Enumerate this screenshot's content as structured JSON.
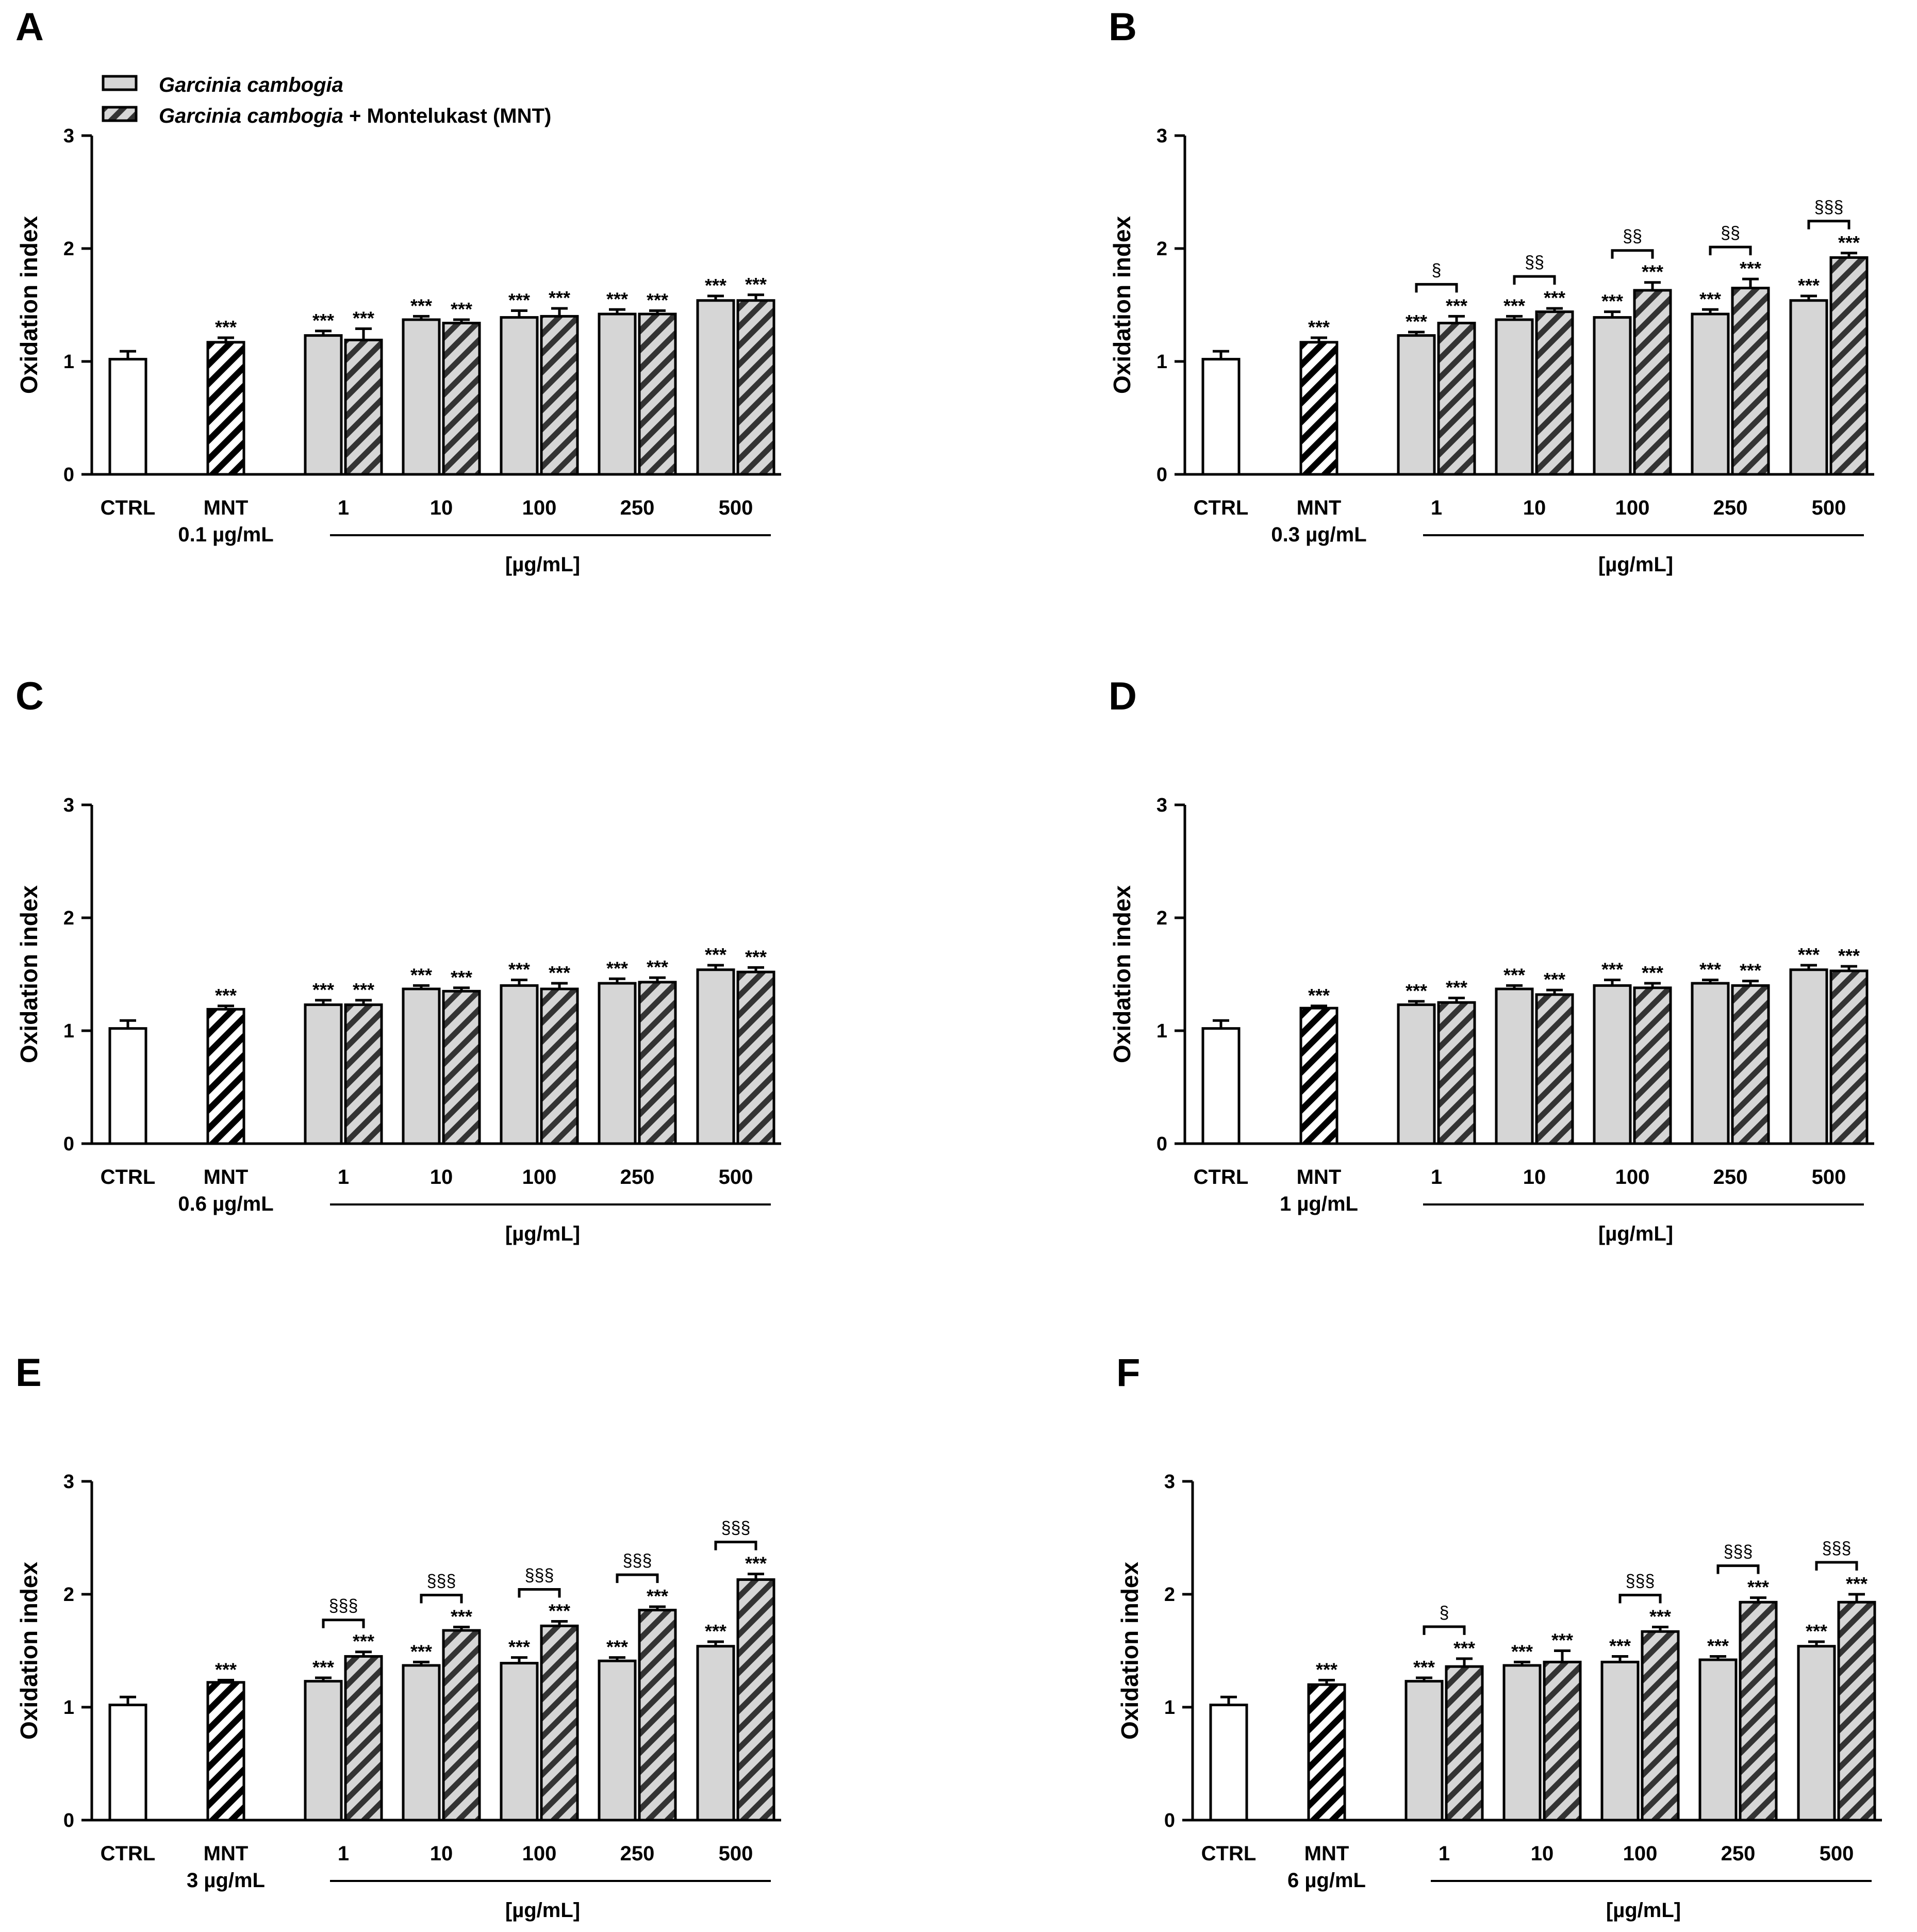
{
  "legend": {
    "gc_label": "Garcinia cambogia",
    "combo_label_italic": "Garcinia cambogia",
    "combo_label_rest": " + Montelukast (MNT)"
  },
  "colors": {
    "gc_fill": "#d6d6d6",
    "ctrl_fill": "#ffffff",
    "stroke": "#000000"
  },
  "chart_data": [
    {
      "panel": "A",
      "type": "bar",
      "ylabel": "Oxidation index",
      "ylim": [
        0,
        3
      ],
      "yticks": [
        "0",
        "1",
        "2",
        "3"
      ],
      "ctrl_label": "CTRL",
      "mnt_label": "MNT",
      "mnt_dose": "0.1 µg/mL",
      "unit_label": "[µg/mL]",
      "categories": [
        "1",
        "10",
        "100",
        "250",
        "500"
      ],
      "ctrl": {
        "value": 1.02,
        "err": 0.07
      },
      "mnt": {
        "value": 1.17,
        "err": 0.04,
        "sig": "***"
      },
      "series": [
        {
          "name": "Garcinia cambogia",
          "values": [
            1.23,
            1.37,
            1.39,
            1.42,
            1.54
          ],
          "errors": [
            0.04,
            0.03,
            0.06,
            0.04,
            0.04
          ],
          "sig": [
            "***",
            "***",
            "***",
            "***",
            "***"
          ]
        },
        {
          "name": "Garcinia cambogia + Montelukast (MNT)",
          "values": [
            1.19,
            1.34,
            1.4,
            1.42,
            1.54
          ],
          "errors": [
            0.1,
            0.03,
            0.07,
            0.03,
            0.05
          ],
          "sig": [
            "***",
            "***",
            "***",
            "***",
            "***"
          ]
        }
      ],
      "brackets": [
        "",
        "",
        "",
        "",
        ""
      ]
    },
    {
      "panel": "B",
      "type": "bar",
      "ylabel": "Oxidation index",
      "ylim": [
        0,
        3
      ],
      "yticks": [
        "0",
        "1",
        "2",
        "3"
      ],
      "ctrl_label": "CTRL",
      "mnt_label": "MNT",
      "mnt_dose": "0.3 µg/mL",
      "unit_label": "[µg/mL]",
      "categories": [
        "1",
        "10",
        "100",
        "250",
        "500"
      ],
      "ctrl": {
        "value": 1.02,
        "err": 0.07
      },
      "mnt": {
        "value": 1.17,
        "err": 0.04,
        "sig": "***"
      },
      "series": [
        {
          "name": "Garcinia cambogia",
          "values": [
            1.23,
            1.37,
            1.39,
            1.42,
            1.54
          ],
          "errors": [
            0.03,
            0.03,
            0.05,
            0.04,
            0.04
          ],
          "sig": [
            "***",
            "***",
            "***",
            "***",
            "***"
          ]
        },
        {
          "name": "Garcinia cambogia + Montelukast (MNT)",
          "values": [
            1.34,
            1.44,
            1.63,
            1.65,
            1.92
          ],
          "errors": [
            0.06,
            0.03,
            0.07,
            0.08,
            0.04
          ],
          "sig": [
            "***",
            "***",
            "***",
            "***",
            "***"
          ]
        }
      ],
      "brackets": [
        "§",
        "§§",
        "§§",
        "§§",
        "§§§"
      ]
    },
    {
      "panel": "C",
      "type": "bar",
      "ylabel": "Oxidation index",
      "ylim": [
        0,
        3
      ],
      "yticks": [
        "0",
        "1",
        "2",
        "3"
      ],
      "ctrl_label": "CTRL",
      "mnt_label": "MNT",
      "mnt_dose": "0.6 µg/mL",
      "unit_label": "[µg/mL]",
      "categories": [
        "1",
        "10",
        "100",
        "250",
        "500"
      ],
      "ctrl": {
        "value": 1.02,
        "err": 0.07
      },
      "mnt": {
        "value": 1.19,
        "err": 0.03,
        "sig": "***"
      },
      "series": [
        {
          "name": "Garcinia cambogia",
          "values": [
            1.23,
            1.37,
            1.4,
            1.42,
            1.54
          ],
          "errors": [
            0.04,
            0.03,
            0.05,
            0.04,
            0.04
          ],
          "sig": [
            "***",
            "***",
            "***",
            "***",
            "***"
          ]
        },
        {
          "name": "Garcinia cambogia + Montelukast (MNT)",
          "values": [
            1.23,
            1.35,
            1.37,
            1.43,
            1.52
          ],
          "errors": [
            0.04,
            0.03,
            0.05,
            0.04,
            0.04
          ],
          "sig": [
            "***",
            "***",
            "***",
            "***",
            "***"
          ]
        }
      ],
      "brackets": [
        "",
        "",
        "",
        "",
        ""
      ]
    },
    {
      "panel": "D",
      "type": "bar",
      "ylabel": "Oxidation index",
      "ylim": [
        0,
        3
      ],
      "yticks": [
        "0",
        "1",
        "2",
        "3"
      ],
      "ctrl_label": "CTRL",
      "mnt_label": "MNT",
      "mnt_dose": "1 µg/mL",
      "unit_label": "[µg/mL]",
      "categories": [
        "1",
        "10",
        "100",
        "250",
        "500"
      ],
      "ctrl": {
        "value": 1.02,
        "err": 0.07
      },
      "mnt": {
        "value": 1.2,
        "err": 0.02,
        "sig": "***"
      },
      "series": [
        {
          "name": "Garcinia cambogia",
          "values": [
            1.23,
            1.37,
            1.4,
            1.42,
            1.54
          ],
          "errors": [
            0.03,
            0.03,
            0.05,
            0.03,
            0.04
          ],
          "sig": [
            "***",
            "***",
            "***",
            "***",
            "***"
          ]
        },
        {
          "name": "Garcinia cambogia + Montelukast (MNT)",
          "values": [
            1.25,
            1.32,
            1.38,
            1.4,
            1.53
          ],
          "errors": [
            0.04,
            0.04,
            0.04,
            0.04,
            0.04
          ],
          "sig": [
            "***",
            "***",
            "***",
            "***",
            "***"
          ]
        }
      ],
      "brackets": [
        "",
        "",
        "",
        "",
        ""
      ]
    },
    {
      "panel": "E",
      "type": "bar",
      "ylabel": "Oxidation index",
      "ylim": [
        0,
        3
      ],
      "yticks": [
        "0",
        "1",
        "2",
        "3"
      ],
      "ctrl_label": "CTRL",
      "mnt_label": "MNT",
      "mnt_dose": "3 µg/mL",
      "unit_label": "[µg/mL]",
      "categories": [
        "1",
        "10",
        "100",
        "250",
        "500"
      ],
      "ctrl": {
        "value": 1.02,
        "err": 0.07
      },
      "mnt": {
        "value": 1.22,
        "err": 0.02,
        "sig": "***"
      },
      "series": [
        {
          "name": "Garcinia cambogia",
          "values": [
            1.23,
            1.37,
            1.39,
            1.41,
            1.54
          ],
          "errors": [
            0.03,
            0.03,
            0.05,
            0.03,
            0.04
          ],
          "sig": [
            "***",
            "***",
            "***",
            "***",
            "***"
          ]
        },
        {
          "name": "Garcinia cambogia + Montelukast (MNT)",
          "values": [
            1.45,
            1.68,
            1.72,
            1.86,
            2.13
          ],
          "errors": [
            0.04,
            0.03,
            0.04,
            0.03,
            0.05
          ],
          "sig": [
            "***",
            "***",
            "***",
            "***",
            "***"
          ]
        }
      ],
      "brackets": [
        "§§§",
        "§§§",
        "§§§",
        "§§§",
        "§§§"
      ]
    },
    {
      "panel": "F",
      "type": "bar",
      "ylabel": "Oxidation index",
      "ylim": [
        0,
        3
      ],
      "yticks": [
        "0",
        "1",
        "2",
        "3"
      ],
      "ctrl_label": "CTRL",
      "mnt_label": "MNT",
      "mnt_dose": "6 µg/mL",
      "unit_label": "[µg/mL]",
      "categories": [
        "1",
        "10",
        "100",
        "250",
        "500"
      ],
      "ctrl": {
        "value": 1.02,
        "err": 0.07
      },
      "mnt": {
        "value": 1.2,
        "err": 0.04,
        "sig": "***"
      },
      "series": [
        {
          "name": "Garcinia cambogia",
          "values": [
            1.23,
            1.37,
            1.4,
            1.42,
            1.54
          ],
          "errors": [
            0.03,
            0.03,
            0.05,
            0.03,
            0.04
          ],
          "sig": [
            "***",
            "***",
            "***",
            "***",
            "***"
          ]
        },
        {
          "name": "Garcinia cambogia + Montelukast (MNT)",
          "values": [
            1.36,
            1.4,
            1.67,
            1.93,
            1.93
          ],
          "errors": [
            0.07,
            0.1,
            0.04,
            0.04,
            0.07
          ],
          "sig": [
            "***",
            "***",
            "***",
            "***",
            "***"
          ]
        }
      ],
      "brackets": [
        "§",
        "",
        "§§§",
        "§§§",
        "§§§"
      ]
    }
  ]
}
